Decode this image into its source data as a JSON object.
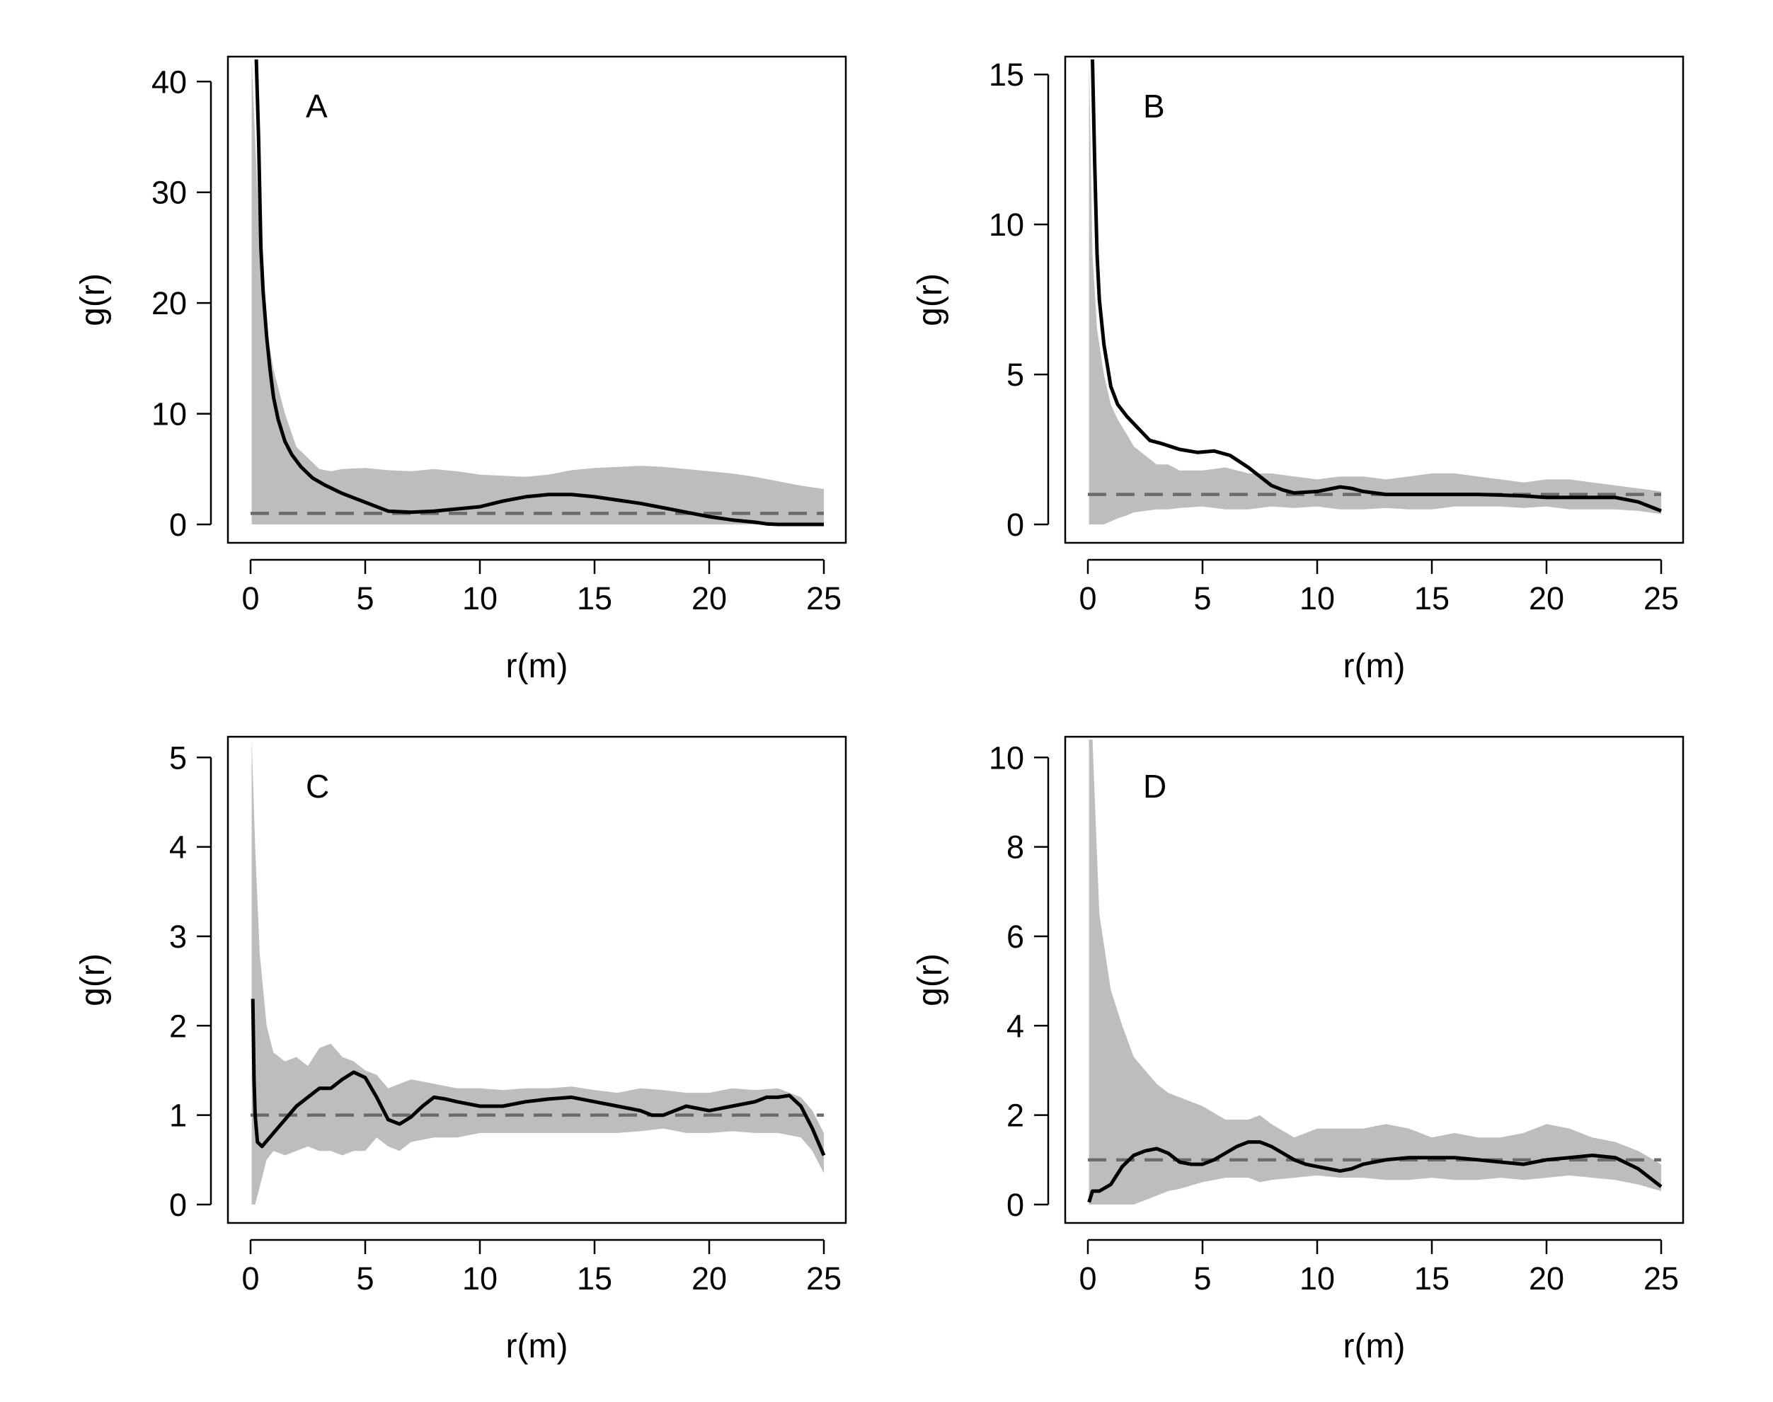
{
  "colors": {
    "envelope": "#bdbdbd",
    "observed": "#000000",
    "expected": "#6b6b6b",
    "frame": "#000000"
  },
  "chart_data": [
    {
      "type": "line",
      "panel": "A",
      "xlabel": "r(m)",
      "ylabel": "g(r)",
      "xlim": [
        0,
        25
      ],
      "ylim": [
        0,
        42
      ],
      "xticks": [
        0,
        5,
        10,
        15,
        20,
        25
      ],
      "yticks": [
        0,
        10,
        20,
        30,
        40
      ],
      "grid": false,
      "expected": 1,
      "series": [
        {
          "role": "observed",
          "x": [
            0.25,
            0.35,
            0.45,
            0.55,
            0.7,
            0.85,
            1.0,
            1.2,
            1.5,
            1.8,
            2.2,
            2.7,
            3.2,
            4.0,
            5.0,
            6.0,
            7.0,
            8.0,
            9.0,
            10.0,
            11.0,
            12.0,
            13.0,
            14.0,
            15.0,
            16.0,
            17.0,
            18.0,
            19.0,
            20.0,
            21.0,
            22.0,
            22.5,
            23.0,
            24.0,
            25.0
          ],
          "y": [
            42,
            35,
            25,
            21,
            17,
            14,
            11.5,
            9.5,
            7.5,
            6.3,
            5.2,
            4.2,
            3.6,
            2.8,
            2.0,
            1.2,
            1.1,
            1.2,
            1.4,
            1.6,
            2.1,
            2.5,
            2.7,
            2.7,
            2.5,
            2.2,
            1.9,
            1.5,
            1.1,
            0.7,
            0.4,
            0.2,
            0.05,
            0.0,
            0.0,
            0.0
          ]
        },
        {
          "role": "envelope",
          "x": [
            0.05,
            0.3,
            0.5,
            1.0,
            1.5,
            2.0,
            3.0,
            3.5,
            4.0,
            5.0,
            6.0,
            7.0,
            8.0,
            9.0,
            10.0,
            11.0,
            12.0,
            13.0,
            14.0,
            15.0,
            16.0,
            17.0,
            18.0,
            19.0,
            20.0,
            21.0,
            22.0,
            23.0,
            24.0,
            25.0
          ],
          "upper": [
            42,
            30,
            20,
            14,
            10,
            7,
            5,
            4.8,
            5.0,
            5.1,
            4.9,
            4.8,
            5.0,
            4.8,
            4.5,
            4.4,
            4.3,
            4.5,
            4.9,
            5.1,
            5.2,
            5.3,
            5.2,
            5.0,
            4.8,
            4.6,
            4.3,
            3.9,
            3.5,
            3.2
          ],
          "lower": [
            0,
            0,
            0,
            0,
            0,
            0,
            0,
            0,
            0,
            0,
            0,
            0,
            0,
            0,
            0,
            0,
            0,
            0,
            0,
            0,
            0,
            0,
            0,
            0,
            0,
            0,
            0,
            0,
            0,
            0
          ]
        }
      ]
    },
    {
      "type": "line",
      "panel": "B",
      "xlabel": "r(m)",
      "ylabel": "g(r)",
      "xlim": [
        0,
        25
      ],
      "ylim": [
        0,
        15.5
      ],
      "xticks": [
        0,
        5,
        10,
        15,
        20,
        25
      ],
      "yticks": [
        0,
        5,
        10,
        15
      ],
      "grid": false,
      "expected": 1,
      "series": [
        {
          "role": "observed",
          "x": [
            0.2,
            0.3,
            0.4,
            0.5,
            0.7,
            1.0,
            1.3,
            1.7,
            2.2,
            2.7,
            3.2,
            4.0,
            4.8,
            5.5,
            6.2,
            7.0,
            7.5,
            8.0,
            8.5,
            9.0,
            10.0,
            11.0,
            11.5,
            12.0,
            13.0,
            14.0,
            15.0,
            16.0,
            17.0,
            18.0,
            19.0,
            20.0,
            21.0,
            22.0,
            23.0,
            24.0,
            25.0
          ],
          "y": [
            15.5,
            12,
            9,
            7.5,
            6.0,
            4.6,
            4.0,
            3.6,
            3.2,
            2.8,
            2.7,
            2.5,
            2.4,
            2.45,
            2.3,
            1.9,
            1.6,
            1.3,
            1.15,
            1.05,
            1.1,
            1.25,
            1.2,
            1.1,
            1.0,
            1.0,
            1.0,
            1.0,
            1.0,
            0.98,
            0.95,
            0.9,
            0.9,
            0.9,
            0.9,
            0.75,
            0.45
          ]
        },
        {
          "role": "envelope",
          "x": [
            0.05,
            0.2,
            0.4,
            0.7,
            1.0,
            1.3,
            1.7,
            2.0,
            2.5,
            3.0,
            3.5,
            4.0,
            5.0,
            6.0,
            7.0,
            8.0,
            9.0,
            10.0,
            11.0,
            12.0,
            13.0,
            14.0,
            15.0,
            16.0,
            17.0,
            18.0,
            19.0,
            20.0,
            21.0,
            22.0,
            23.0,
            24.0,
            25.0
          ],
          "upper": [
            15.5,
            9,
            6.5,
            5.0,
            4.0,
            3.5,
            3.0,
            2.6,
            2.3,
            2.0,
            2.0,
            1.8,
            1.8,
            1.9,
            1.7,
            1.7,
            1.6,
            1.5,
            1.6,
            1.6,
            1.5,
            1.6,
            1.7,
            1.7,
            1.6,
            1.5,
            1.4,
            1.5,
            1.5,
            1.4,
            1.3,
            1.2,
            1.1
          ],
          "lower": [
            0,
            0,
            0,
            0,
            0.1,
            0.2,
            0.3,
            0.4,
            0.45,
            0.5,
            0.5,
            0.55,
            0.6,
            0.5,
            0.5,
            0.6,
            0.55,
            0.6,
            0.5,
            0.5,
            0.55,
            0.5,
            0.5,
            0.6,
            0.6,
            0.6,
            0.55,
            0.6,
            0.5,
            0.5,
            0.5,
            0.45,
            0.35
          ]
        }
      ]
    },
    {
      "type": "line",
      "panel": "C",
      "xlabel": "r(m)",
      "ylabel": "g(r)",
      "xlim": [
        0,
        25
      ],
      "ylim": [
        0,
        5.2
      ],
      "xticks": [
        0,
        5,
        10,
        15,
        20,
        25
      ],
      "yticks": [
        0,
        1,
        2,
        3,
        4,
        5
      ],
      "grid": false,
      "expected": 1,
      "series": [
        {
          "role": "observed",
          "x": [
            0.1,
            0.15,
            0.2,
            0.3,
            0.5,
            1.0,
            1.5,
            2.0,
            2.5,
            3.0,
            3.5,
            4.0,
            4.5,
            5.0,
            5.5,
            6.0,
            6.5,
            7.0,
            7.5,
            8.0,
            8.5,
            9.0,
            10.0,
            11.0,
            12.0,
            13.0,
            14.0,
            15.0,
            16.0,
            17.0,
            17.5,
            18.0,
            18.5,
            19.0,
            20.0,
            21.0,
            22.0,
            22.5,
            23.0,
            23.5,
            24.0,
            24.5,
            25.0
          ],
          "y": [
            2.3,
            1.4,
            1.0,
            0.7,
            0.65,
            0.8,
            0.95,
            1.1,
            1.2,
            1.3,
            1.3,
            1.4,
            1.48,
            1.42,
            1.2,
            0.95,
            0.9,
            0.98,
            1.1,
            1.2,
            1.18,
            1.15,
            1.1,
            1.1,
            1.15,
            1.18,
            1.2,
            1.15,
            1.1,
            1.05,
            1.0,
            1.0,
            1.05,
            1.1,
            1.05,
            1.1,
            1.15,
            1.2,
            1.2,
            1.22,
            1.1,
            0.85,
            0.55
          ]
        },
        {
          "role": "envelope",
          "x": [
            0.05,
            0.2,
            0.4,
            0.7,
            1.0,
            1.5,
            2.0,
            2.5,
            3.0,
            3.5,
            4.0,
            4.5,
            5.0,
            5.5,
            6.0,
            6.5,
            7.0,
            8.0,
            9.0,
            10.0,
            11.0,
            12.0,
            13.0,
            14.0,
            15.0,
            16.0,
            17.0,
            18.0,
            19.0,
            20.0,
            21.0,
            22.0,
            23.0,
            24.0,
            24.5,
            25.0
          ],
          "upper": [
            5.2,
            4.0,
            2.8,
            2.0,
            1.7,
            1.6,
            1.65,
            1.55,
            1.75,
            1.8,
            1.65,
            1.6,
            1.5,
            1.45,
            1.3,
            1.35,
            1.4,
            1.35,
            1.3,
            1.3,
            1.28,
            1.3,
            1.3,
            1.32,
            1.28,
            1.25,
            1.3,
            1.28,
            1.25,
            1.25,
            1.3,
            1.28,
            1.3,
            1.2,
            1.05,
            0.8
          ],
          "lower": [
            0,
            0,
            0.2,
            0.5,
            0.6,
            0.55,
            0.6,
            0.65,
            0.6,
            0.6,
            0.55,
            0.6,
            0.6,
            0.75,
            0.65,
            0.6,
            0.7,
            0.75,
            0.75,
            0.8,
            0.8,
            0.8,
            0.8,
            0.8,
            0.8,
            0.8,
            0.82,
            0.85,
            0.8,
            0.8,
            0.82,
            0.8,
            0.8,
            0.75,
            0.6,
            0.35
          ]
        }
      ]
    },
    {
      "type": "line",
      "panel": "D",
      "xlabel": "r(m)",
      "ylabel": "g(r)",
      "xlim": [
        0,
        25
      ],
      "ylim": [
        0,
        10.4
      ],
      "xticks": [
        0,
        5,
        10,
        15,
        20,
        25
      ],
      "yticks": [
        0,
        2,
        4,
        6,
        8,
        10
      ],
      "grid": false,
      "expected": 1,
      "series": [
        {
          "role": "observed",
          "x": [
            0.05,
            0.2,
            0.5,
            1.0,
            1.5,
            2.0,
            2.5,
            3.0,
            3.5,
            4.0,
            4.5,
            5.0,
            5.5,
            6.0,
            6.5,
            7.0,
            7.5,
            8.0,
            8.5,
            9.0,
            9.5,
            10.0,
            10.5,
            11.0,
            11.5,
            12.0,
            13.0,
            14.0,
            15.0,
            16.0,
            17.0,
            18.0,
            19.0,
            20.0,
            21.0,
            22.0,
            23.0,
            24.0,
            25.0
          ],
          "y": [
            0.05,
            0.3,
            0.3,
            0.45,
            0.85,
            1.1,
            1.2,
            1.25,
            1.15,
            0.95,
            0.9,
            0.9,
            1.0,
            1.15,
            1.3,
            1.4,
            1.4,
            1.3,
            1.15,
            1.0,
            0.9,
            0.85,
            0.8,
            0.75,
            0.8,
            0.9,
            1.0,
            1.05,
            1.05,
            1.05,
            1.0,
            0.95,
            0.9,
            1.0,
            1.05,
            1.1,
            1.05,
            0.8,
            0.4
          ]
        },
        {
          "role": "envelope",
          "x": [
            0.05,
            0.2,
            0.5,
            1.0,
            1.5,
            2.0,
            2.5,
            3.0,
            3.5,
            4.0,
            5.0,
            6.0,
            7.0,
            7.5,
            8.0,
            9.0,
            10.0,
            11.0,
            12.0,
            13.0,
            14.0,
            15.0,
            16.0,
            17.0,
            18.0,
            19.0,
            20.0,
            21.0,
            22.0,
            23.0,
            24.0,
            25.0
          ],
          "upper": [
            10.4,
            10.4,
            6.5,
            4.8,
            4.0,
            3.3,
            3.0,
            2.7,
            2.5,
            2.4,
            2.2,
            1.9,
            1.9,
            2.0,
            1.8,
            1.5,
            1.7,
            1.7,
            1.7,
            1.8,
            1.7,
            1.5,
            1.6,
            1.5,
            1.5,
            1.6,
            1.8,
            1.7,
            1.5,
            1.4,
            1.2,
            0.9
          ],
          "lower": [
            0,
            0,
            0,
            0,
            0,
            0,
            0.1,
            0.2,
            0.3,
            0.35,
            0.5,
            0.6,
            0.6,
            0.5,
            0.55,
            0.6,
            0.65,
            0.6,
            0.6,
            0.55,
            0.55,
            0.6,
            0.55,
            0.55,
            0.6,
            0.55,
            0.6,
            0.65,
            0.6,
            0.55,
            0.45,
            0.3
          ]
        }
      ]
    }
  ]
}
